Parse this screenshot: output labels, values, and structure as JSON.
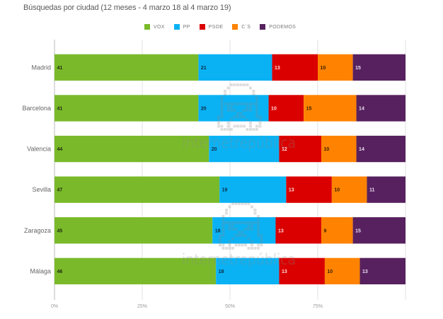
{
  "chart_data": {
    "type": "bar",
    "orientation": "horizontal",
    "stacked": "percent",
    "title": "Búsquedas por ciudad (12 meses - 4 marzo 18 al 4 marzo 19)",
    "xlabel": "",
    "ylabel": "",
    "xlim": [
      0,
      100
    ],
    "grid": true,
    "legend": "top-center",
    "categories": [
      "Madrid",
      "Barcelona",
      "Valencia",
      "Sevilla",
      "Zaragoza",
      "Málaga"
    ],
    "series": [
      {
        "name": "VOX",
        "color": "#7aba2a",
        "label_color": "#1f2a10",
        "values": [
          41,
          41,
          44,
          47,
          45,
          46
        ]
      },
      {
        "name": "PP",
        "color": "#0ab2f4",
        "label_color": "#0d2a45",
        "values": [
          21,
          20,
          20,
          19,
          18,
          18
        ]
      },
      {
        "name": "PSOE",
        "color": "#da0000",
        "label_color": "#ffd9d9",
        "values": [
          13,
          10,
          12,
          13,
          13,
          13
        ]
      },
      {
        "name": "C´S",
        "color": "#ff8300",
        "label_color": "#3a2000",
        "values": [
          10,
          15,
          10,
          10,
          9,
          10
        ]
      },
      {
        "name": "PODEMOS",
        "color": "#57215f",
        "label_color": "#eadcee",
        "values": [
          15,
          14,
          14,
          11,
          15,
          13
        ]
      }
    ],
    "xticks": [
      {
        "value": 0,
        "label": "0%"
      },
      {
        "value": 25,
        "label": "25%"
      },
      {
        "value": 50,
        "label": "50%"
      },
      {
        "value": 75,
        "label": "75%"
      },
      {
        "value": 100,
        "label": ""
      }
    ]
  },
  "watermark": {
    "text": "internetrepública"
  }
}
